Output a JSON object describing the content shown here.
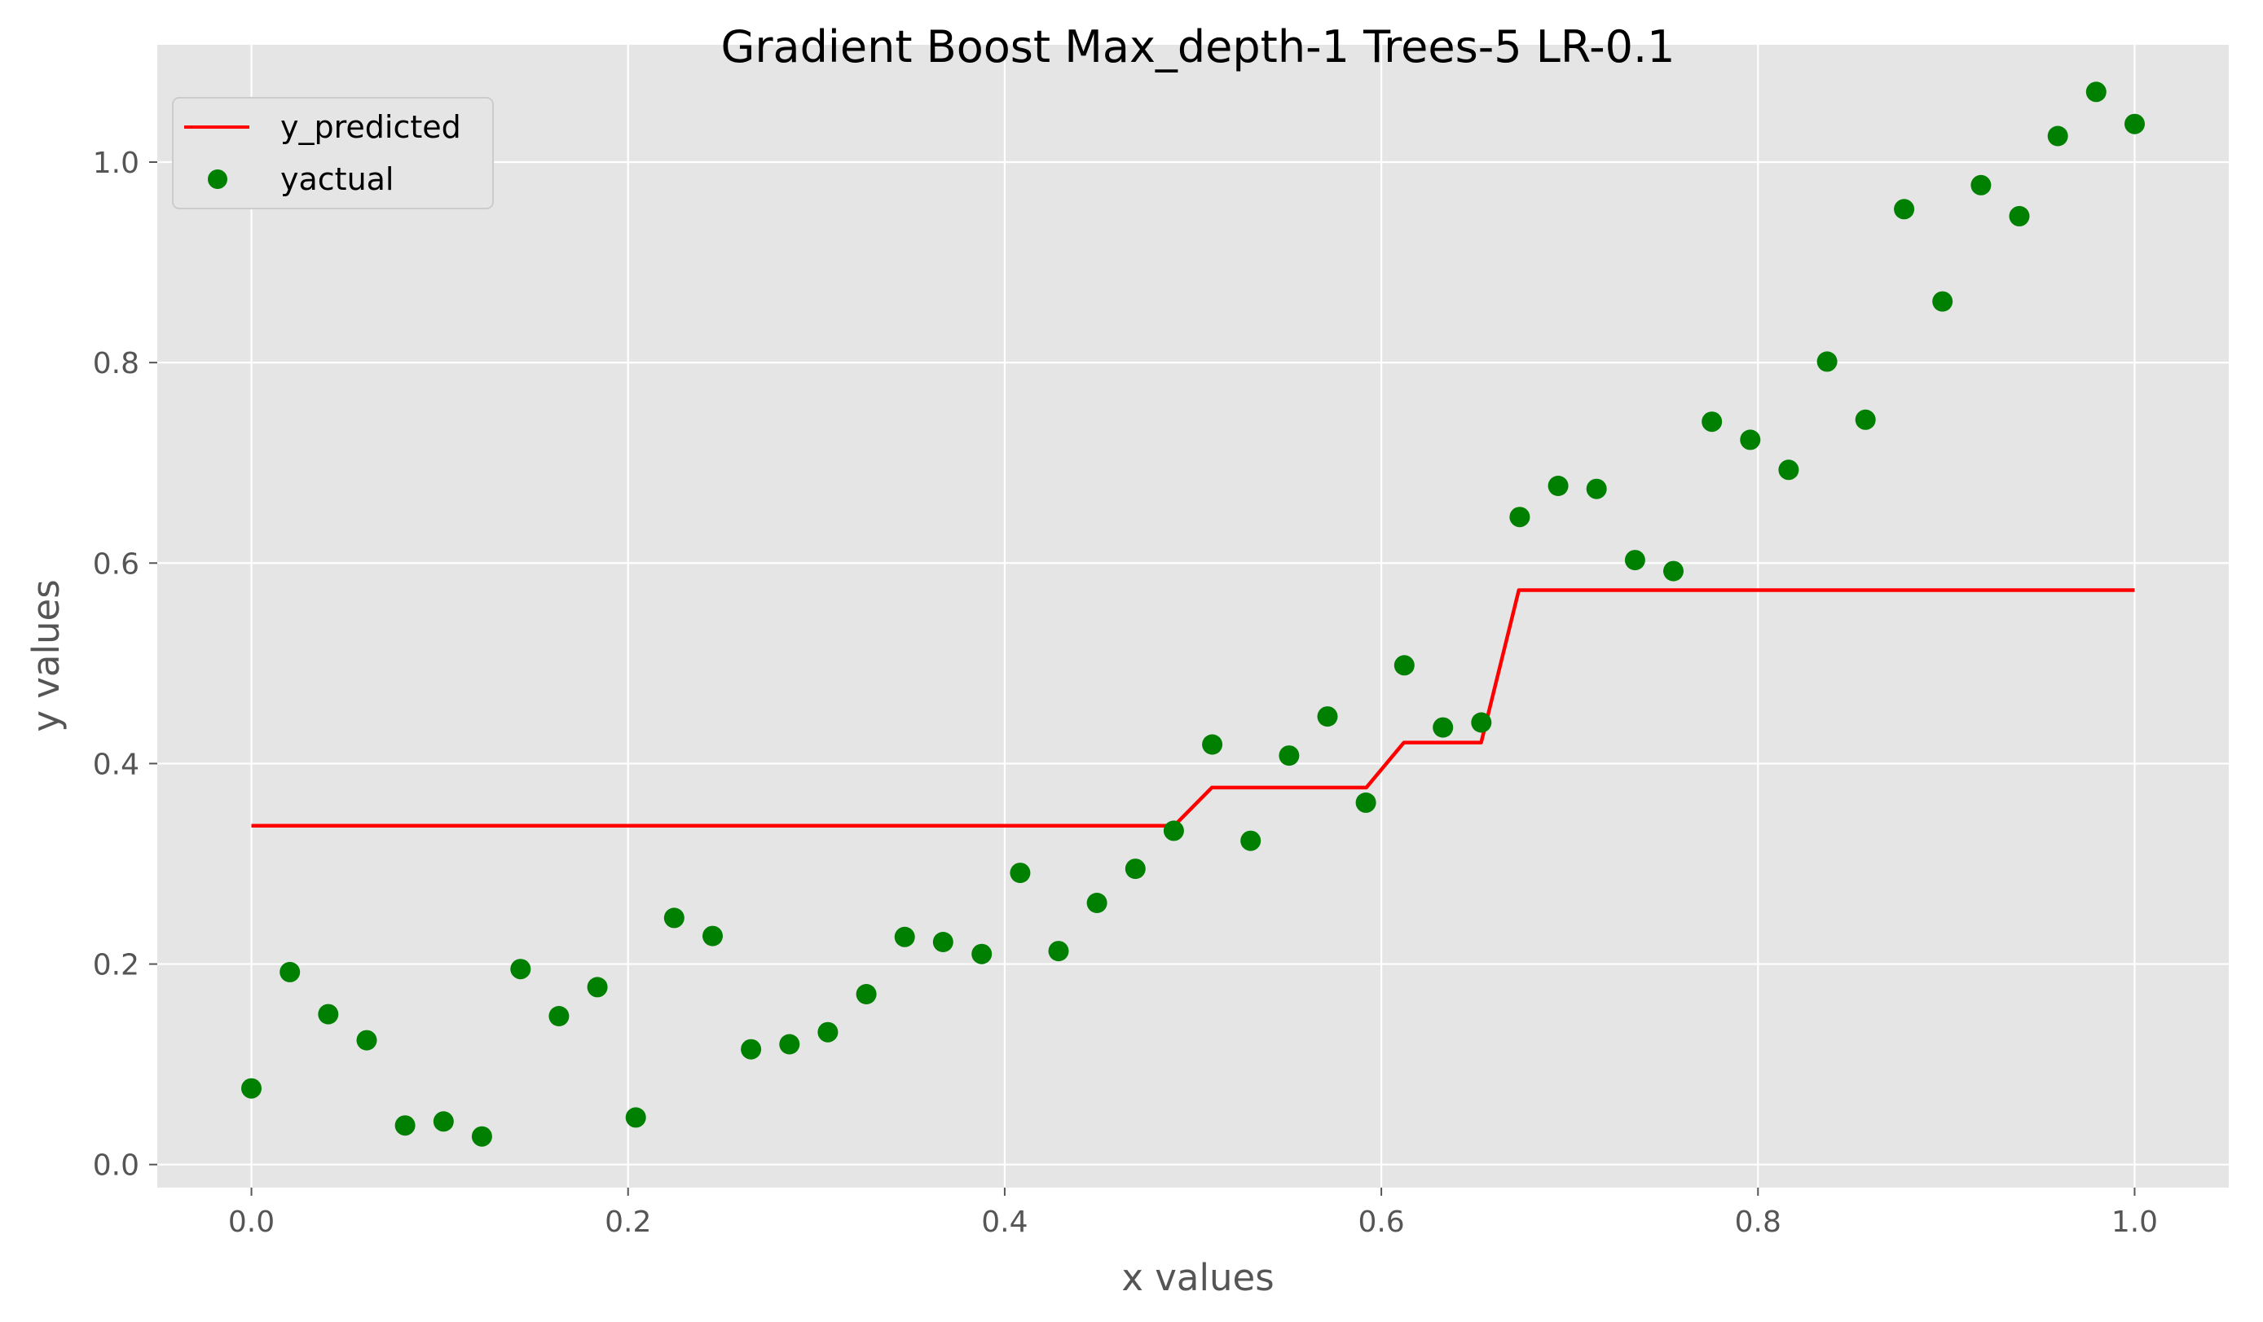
{
  "chart_data": {
    "type": "line+scatter",
    "title": "Gradient Boost Max_depth-1 Trees-5 LR-0.1",
    "xlabel": "x values",
    "ylabel": "y values",
    "xlim": [
      -0.05,
      1.05
    ],
    "ylim": [
      -0.023,
      1.117
    ],
    "xticks": [
      0.0,
      0.2,
      0.4,
      0.6,
      0.8,
      1.0
    ],
    "yticks": [
      0.0,
      0.2,
      0.4,
      0.6,
      0.8,
      1.0
    ],
    "xtick_labels": [
      "0.0",
      "0.2",
      "0.4",
      "0.6",
      "0.8",
      "1.0"
    ],
    "ytick_labels": [
      "0.0",
      "0.2",
      "0.4",
      "0.6",
      "0.8",
      "1.0"
    ],
    "grid": true,
    "legend_position": "top-left",
    "colors": {
      "background": "#e5e5e5",
      "grid": "#ffffff",
      "line": "#ff0000",
      "points": "#008000"
    },
    "series": [
      {
        "name": "y_predicted",
        "kind": "line",
        "x": [
          0.0,
          0.49,
          0.51,
          0.592,
          0.612,
          0.653,
          0.673,
          1.0
        ],
        "y": [
          0.338,
          0.338,
          0.376,
          0.376,
          0.421,
          0.421,
          0.573,
          0.573
        ]
      },
      {
        "name": "yactual",
        "kind": "scatter",
        "x": [
          0.0,
          0.0204,
          0.0408,
          0.0612,
          0.0816,
          0.102,
          0.1224,
          0.1429,
          0.1633,
          0.1837,
          0.2041,
          0.2245,
          0.2449,
          0.2653,
          0.2857,
          0.3061,
          0.3265,
          0.3469,
          0.3673,
          0.3878,
          0.4082,
          0.4286,
          0.449,
          0.4694,
          0.4898,
          0.5102,
          0.5306,
          0.551,
          0.5714,
          0.5918,
          0.6122,
          0.6327,
          0.6531,
          0.6735,
          0.6939,
          0.7143,
          0.7347,
          0.7551,
          0.7755,
          0.7959,
          0.8163,
          0.8367,
          0.8571,
          0.8776,
          0.898,
          0.9184,
          0.9388,
          0.9592,
          0.9796,
          1.0
        ],
        "y": [
          0.076,
          0.192,
          0.15,
          0.124,
          0.039,
          0.043,
          0.028,
          0.195,
          0.148,
          0.177,
          0.047,
          0.246,
          0.228,
          0.115,
          0.12,
          0.132,
          0.17,
          0.227,
          0.222,
          0.21,
          0.291,
          0.213,
          0.261,
          0.295,
          0.333,
          0.419,
          0.323,
          0.408,
          0.447,
          0.361,
          0.498,
          0.436,
          0.441,
          0.646,
          0.677,
          0.674,
          0.603,
          0.592,
          0.741,
          0.723,
          0.693,
          0.801,
          0.743,
          0.953,
          0.861,
          0.977,
          0.946,
          1.026,
          1.07,
          1.038
        ]
      }
    ]
  }
}
